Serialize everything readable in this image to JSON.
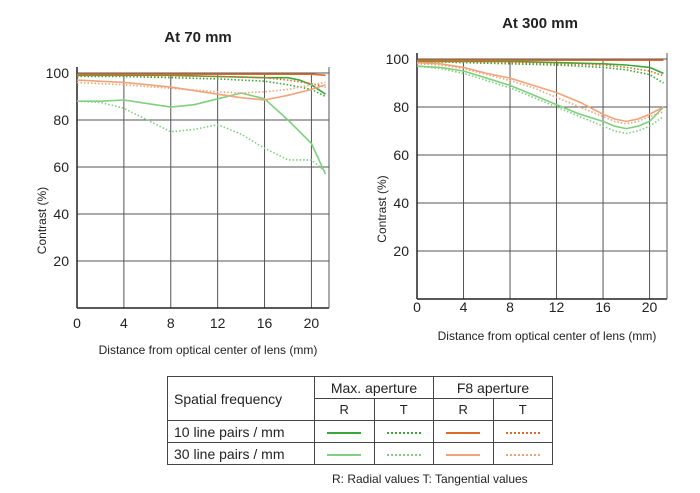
{
  "chart_data": [
    {
      "type": "line",
      "title": "At 70 mm",
      "xlabel": "Distance from optical center of lens (mm)",
      "ylabel": "Contrast (%)",
      "xlim": [
        0,
        21.5
      ],
      "ylim": [
        0,
        100
      ],
      "xticks": [
        0,
        4,
        8,
        12,
        16,
        20
      ],
      "yticks": [
        20,
        40,
        60,
        80,
        100
      ],
      "grid": true,
      "series": [
        {
          "key": "max_r10",
          "x": [
            0,
            4,
            8,
            12,
            16,
            18,
            19,
            20,
            21.2
          ],
          "y": [
            99,
            99,
            99,
            98.5,
            98,
            98,
            97,
            95,
            91
          ]
        },
        {
          "key": "max_t10",
          "x": [
            0,
            4,
            8,
            12,
            16,
            18,
            20,
            21.2
          ],
          "y": [
            98.5,
            98.5,
            98,
            97.5,
            96.5,
            95,
            93,
            90
          ]
        },
        {
          "key": "f8_r10",
          "x": [
            0,
            4,
            8,
            12,
            16,
            18,
            20,
            21.2
          ],
          "y": [
            99.5,
            99.5,
            99.5,
            99.5,
            99.5,
            99.5,
            99.5,
            99
          ]
        },
        {
          "key": "f8_t10",
          "x": [
            0,
            4,
            8,
            12,
            16,
            18,
            20,
            21.2
          ],
          "y": [
            99.2,
            99,
            98.8,
            98.5,
            98,
            97,
            95.5,
            94
          ]
        },
        {
          "key": "max_r30",
          "x": [
            0,
            2,
            4,
            6,
            8,
            10,
            12,
            14,
            16,
            18,
            20,
            21.2
          ],
          "y": [
            88,
            88,
            88.5,
            87,
            85.5,
            86.5,
            89,
            91.5,
            89,
            80,
            70,
            57
          ]
        },
        {
          "key": "max_t30",
          "x": [
            0,
            2,
            4,
            6,
            8,
            10,
            12,
            14,
            16,
            18,
            20,
            21.2
          ],
          "y": [
            88,
            87.5,
            85,
            80,
            75,
            76,
            78,
            74,
            68,
            63,
            63,
            58
          ]
        },
        {
          "key": "f8_r30",
          "x": [
            0,
            4,
            8,
            12,
            14,
            16,
            18,
            20,
            21.2
          ],
          "y": [
            97,
            96,
            94,
            91,
            89.5,
            88.5,
            90.5,
            93,
            95
          ]
        },
        {
          "key": "f8_t30",
          "x": [
            0,
            4,
            8,
            12,
            14,
            16,
            18,
            20,
            21.2
          ],
          "y": [
            96,
            95,
            93.5,
            92,
            91.5,
            92,
            93,
            95,
            96
          ]
        }
      ]
    },
    {
      "type": "line",
      "title": "At 300 mm",
      "xlabel": "Distance from optical center of lens (mm)",
      "ylabel": "Contrast (%)",
      "xlim": [
        0,
        21.5
      ],
      "ylim": [
        0,
        100
      ],
      "xticks": [
        0,
        4,
        8,
        12,
        16,
        20
      ],
      "yticks": [
        20,
        40,
        60,
        80,
        100
      ],
      "grid": true,
      "series": [
        {
          "key": "max_r10",
          "x": [
            0,
            4,
            8,
            12,
            16,
            18,
            20,
            21.2
          ],
          "y": [
            99,
            99,
            99,
            98.5,
            98,
            97.5,
            96.5,
            94
          ]
        },
        {
          "key": "max_t10",
          "x": [
            0,
            4,
            8,
            12,
            16,
            18,
            20,
            21.2
          ],
          "y": [
            99,
            98.5,
            98,
            97.5,
            96.5,
            95.5,
            93.5,
            90
          ]
        },
        {
          "key": "f8_r10",
          "x": [
            0,
            4,
            8,
            12,
            16,
            18,
            20,
            21.2
          ],
          "y": [
            99.5,
            99.5,
            99.5,
            99.5,
            99.5,
            99.5,
            99.5,
            99.5
          ]
        },
        {
          "key": "f8_t10",
          "x": [
            0,
            4,
            8,
            12,
            16,
            18,
            20,
            21.2
          ],
          "y": [
            99,
            99,
            98.5,
            98,
            97.5,
            96.5,
            95,
            93
          ]
        },
        {
          "key": "max_r30",
          "x": [
            0,
            2,
            4,
            6,
            8,
            10,
            12,
            14,
            16,
            17,
            18,
            19,
            20,
            21.2
          ],
          "y": [
            97,
            96.5,
            95,
            92,
            89,
            85,
            81,
            77,
            74,
            72,
            71,
            72,
            74,
            80
          ]
        },
        {
          "key": "max_t30",
          "x": [
            0,
            2,
            4,
            6,
            8,
            10,
            12,
            14,
            16,
            17,
            18,
            19,
            20,
            21.2
          ],
          "y": [
            97,
            96,
            94,
            91,
            88,
            84,
            80,
            76,
            72,
            70,
            69,
            70,
            72,
            76
          ]
        },
        {
          "key": "f8_r30",
          "x": [
            0,
            2,
            4,
            6,
            8,
            10,
            12,
            14,
            16,
            17,
            18,
            19,
            20,
            21.2
          ],
          "y": [
            98.5,
            98,
            96.5,
            94,
            92,
            89,
            86,
            82,
            77,
            75,
            74,
            75,
            77,
            80
          ]
        },
        {
          "key": "f8_t30",
          "x": [
            0,
            2,
            4,
            6,
            8,
            10,
            12,
            14,
            16,
            17,
            18,
            19,
            20,
            21.2
          ],
          "y": [
            98,
            97.5,
            96,
            93.5,
            91,
            88,
            84,
            80,
            76,
            74,
            73,
            74,
            76,
            78
          ]
        }
      ]
    }
  ],
  "series_styles": {
    "max_r10": {
      "color": "#3aa83a",
      "dashed": false
    },
    "max_t10": {
      "color": "#3aa83a",
      "dashed": true
    },
    "f8_r10": {
      "color": "#e06a2a",
      "dashed": false
    },
    "f8_t10": {
      "color": "#e06a2a",
      "dashed": true
    },
    "max_r30": {
      "color": "#7fd07f",
      "dashed": false
    },
    "max_t30": {
      "color": "#7fd07f",
      "dashed": true
    },
    "f8_r30": {
      "color": "#f0a47a",
      "dashed": false
    },
    "f8_t30": {
      "color": "#f0a47a",
      "dashed": true
    }
  },
  "legend": {
    "header_label": "Spatial frequency",
    "group1": "Max. aperture",
    "group2": "F8 aperture",
    "r_label": "R",
    "t_label": "T",
    "row1": "10 line pairs / mm",
    "row2": "30 line pairs / mm",
    "footnote": "R: Radial values  T: Tangential values"
  }
}
